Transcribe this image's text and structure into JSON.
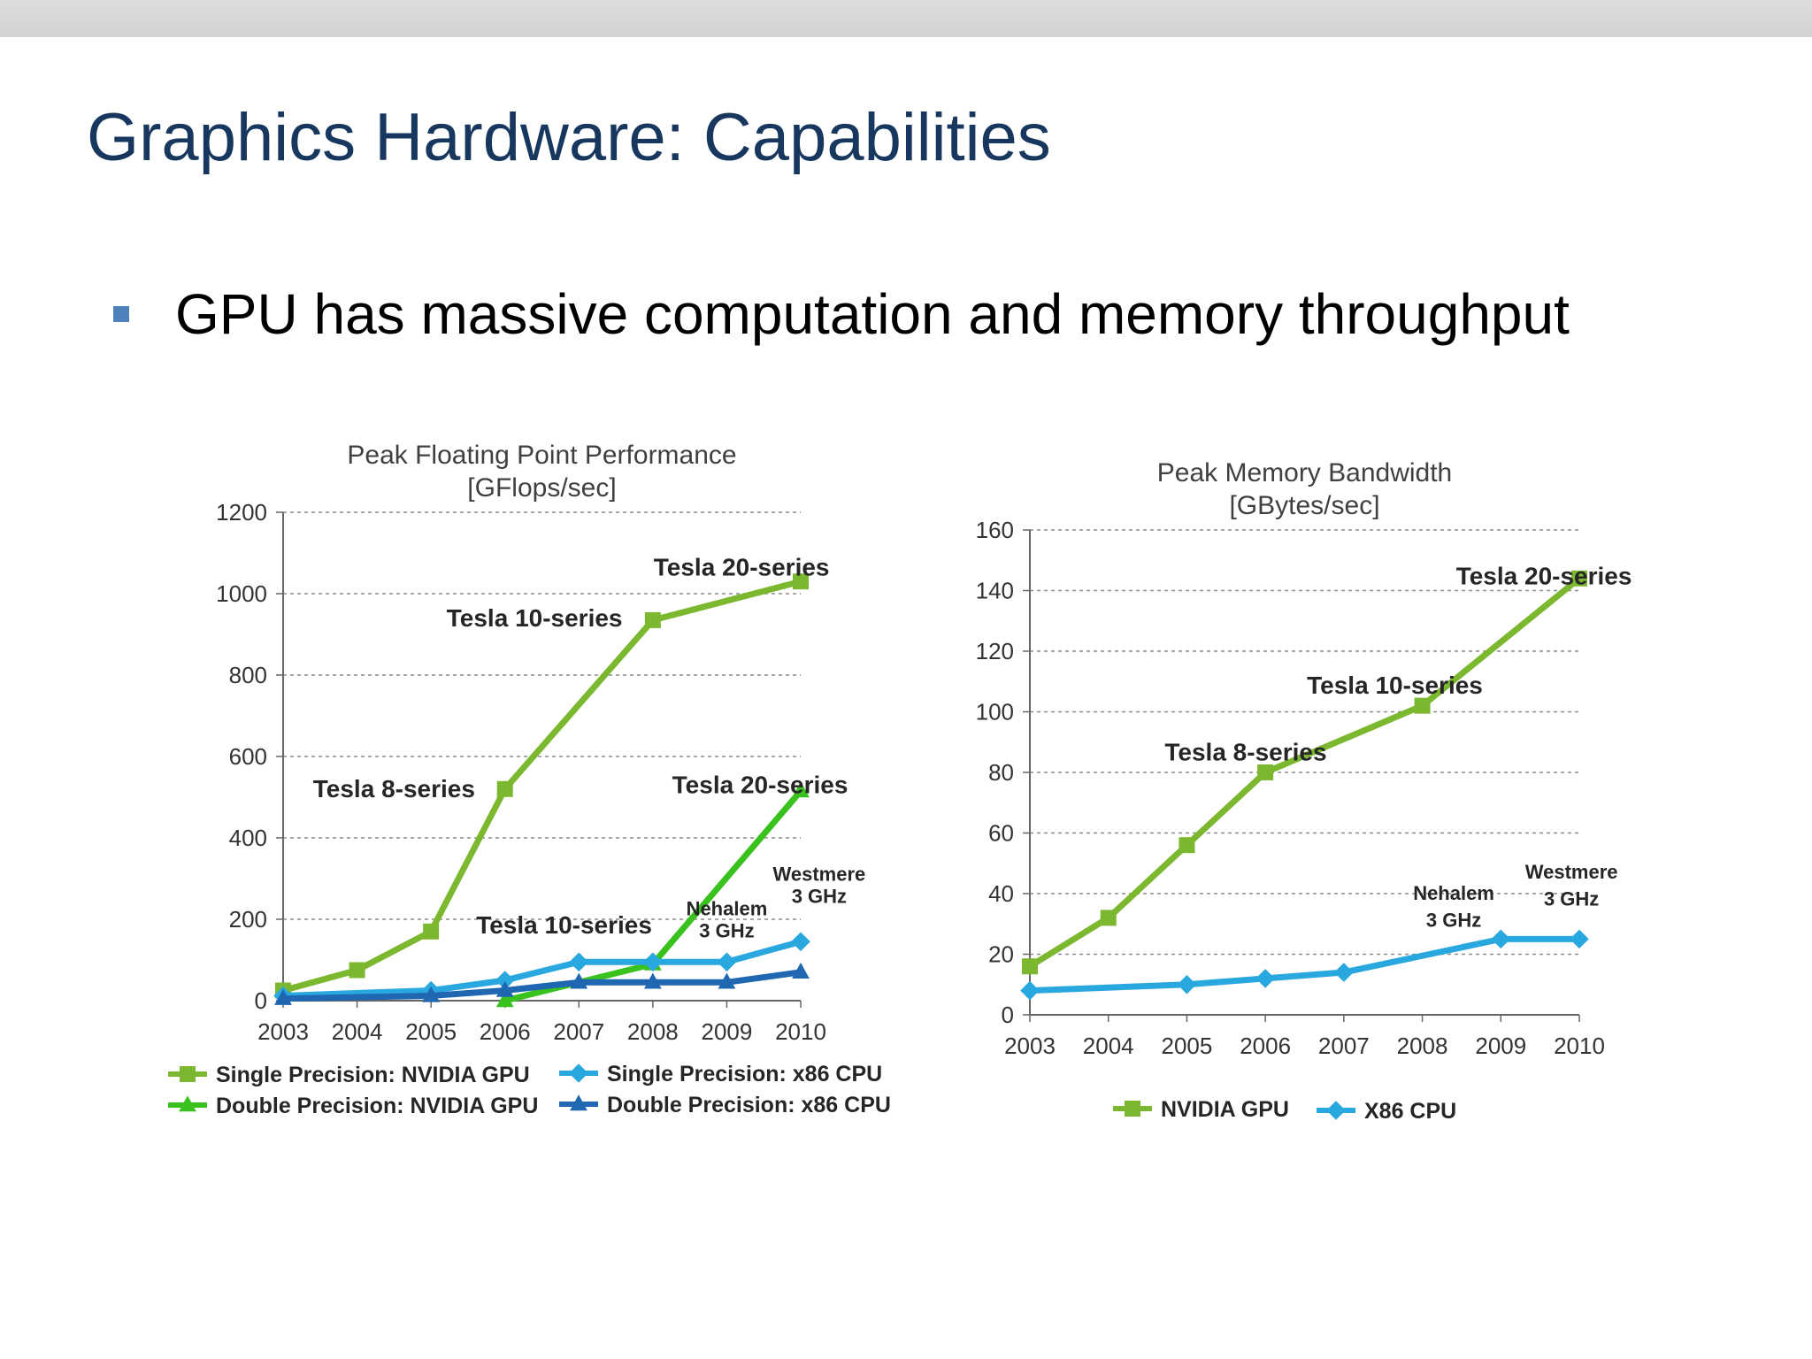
{
  "slide": {
    "title": "Graphics Hardware: Capabilities",
    "bullet": "GPU has massive computation and memory throughput"
  },
  "chart_data": [
    {
      "type": "line",
      "title": "Peak Floating Point Performance",
      "subtitle": "[GFlops/sec]",
      "xlabel": "",
      "ylabel": "",
      "categories": [
        "2003",
        "2004",
        "2005",
        "2006",
        "2007",
        "2008",
        "2009",
        "2010"
      ],
      "ylim": [
        0,
        1200
      ],
      "yticks": [
        0,
        200,
        400,
        600,
        800,
        1000,
        1200
      ],
      "grid": true,
      "legend_position": "bottom",
      "series": [
        {
          "name": "Single Precision: NVIDIA GPU",
          "color": "#7cb82f",
          "marker": "square",
          "x": [
            "2003",
            "2004",
            "2005",
            "2006",
            "2008",
            "2010"
          ],
          "values": [
            25,
            75,
            170,
            520,
            935,
            1030
          ]
        },
        {
          "name": "Double Precision: NVIDIA GPU",
          "color": "#39c21e",
          "marker": "triangle",
          "x": [
            "2006",
            "2008",
            "2010"
          ],
          "values": [
            0,
            90,
            515
          ]
        },
        {
          "name": "Single Precision: x86 CPU",
          "color": "#29a8e0",
          "marker": "diamond",
          "x": [
            "2003",
            "2005",
            "2006",
            "2007",
            "2008",
            "2009",
            "2010"
          ],
          "values": [
            12,
            25,
            50,
            95,
            95,
            95,
            145
          ]
        },
        {
          "name": "Double Precision: x86 CPU",
          "color": "#1f67b1",
          "marker": "triangle",
          "x": [
            "2003",
            "2005",
            "2006",
            "2007",
            "2008",
            "2009",
            "2010"
          ],
          "values": [
            5,
            12,
            25,
            45,
            45,
            45,
            70
          ]
        }
      ],
      "annotations": [
        {
          "text": "Tesla 20-series",
          "x": "2009.2",
          "y": 1045
        },
        {
          "text": "Tesla 10-series",
          "x": "2006.4",
          "y": 920
        },
        {
          "text": "Tesla 8-series",
          "x": "2004.5",
          "y": 500
        },
        {
          "text": "Tesla 20-series",
          "x": "2009.45",
          "y": 510
        },
        {
          "text": "Tesla 10-series",
          "x": "2006.8",
          "y": 165
        },
        {
          "text": "Westmere",
          "x": "2010.25",
          "y": 295
        },
        {
          "text": "3 GHz",
          "x": "2010.25",
          "y": 240
        },
        {
          "text": "Nehalem",
          "x": "2009.0",
          "y": 210
        },
        {
          "text": "3 GHz",
          "x": "2009.0",
          "y": 155
        }
      ]
    },
    {
      "type": "line",
      "title": "Peak Memory Bandwidth",
      "subtitle": "[GBytes/sec]",
      "xlabel": "",
      "ylabel": "",
      "categories": [
        "2003",
        "2004",
        "2005",
        "2006",
        "2007",
        "2008",
        "2009",
        "2010"
      ],
      "ylim": [
        0,
        160
      ],
      "yticks": [
        0,
        20,
        40,
        60,
        80,
        100,
        120,
        140,
        160
      ],
      "grid": true,
      "legend_position": "bottom",
      "series": [
        {
          "name": "NVIDIA GPU",
          "color": "#7cb82f",
          "marker": "square",
          "x": [
            "2003",
            "2004",
            "2005",
            "2006",
            "2008",
            "2010"
          ],
          "values": [
            16,
            32,
            56,
            80,
            102,
            144
          ]
        },
        {
          "name": "X86 CPU",
          "color": "#29a8e0",
          "marker": "diamond",
          "x": [
            "2003",
            "2005",
            "2006",
            "2007",
            "2009",
            "2010"
          ],
          "values": [
            8,
            10,
            12,
            14,
            25,
            25
          ]
        }
      ],
      "annotations": [
        {
          "text": "Tesla 20-series",
          "x": "2009.55",
          "y": 142
        },
        {
          "text": "Tesla 10-series",
          "x": "2007.65",
          "y": 106
        },
        {
          "text": "Tesla 8-series",
          "x": "2005.75",
          "y": 84
        },
        {
          "text": "Nehalem",
          "x": "2008.4",
          "y": 38
        },
        {
          "text": "3 GHz",
          "x": "2008.4",
          "y": 29
        },
        {
          "text": "Westmere",
          "x": "2009.9",
          "y": 45
        },
        {
          "text": "3 GHz",
          "x": "2009.9",
          "y": 36
        }
      ]
    }
  ]
}
